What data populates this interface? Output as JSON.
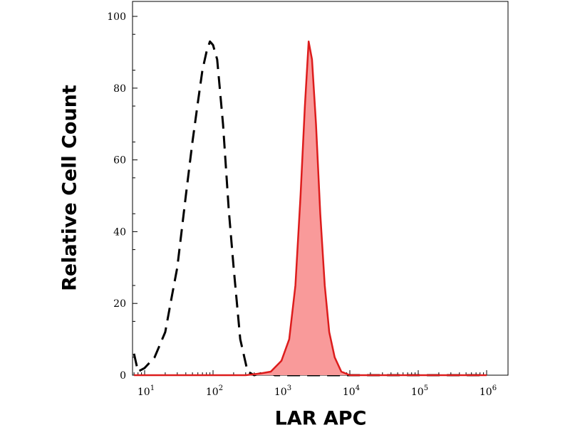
{
  "chart_data": {
    "type": "area",
    "xlabel": "LAR APC",
    "ylabel": "Relative Cell Count",
    "x_scale": "log",
    "xlim": [
      7,
      1200000
    ],
    "ylim": [
      0,
      105
    ],
    "x_ticks": [
      {
        "base": "10",
        "exp": "1",
        "value": 10
      },
      {
        "base": "10",
        "exp": "2",
        "value": 100
      },
      {
        "base": "10",
        "exp": "3",
        "value": 1000
      },
      {
        "base": "10",
        "exp": "4",
        "value": 10000
      },
      {
        "base": "10",
        "exp": "5",
        "value": 100000
      },
      {
        "base": "10",
        "exp": "6",
        "value": 1000000
      }
    ],
    "y_ticks": [
      "0",
      "20",
      "40",
      "60",
      "80",
      "100"
    ],
    "grid": false,
    "series": [
      {
        "style": "dashed",
        "color": "#000000",
        "x": [
          7,
          8,
          10,
          14,
          20,
          25,
          30,
          40,
          50,
          60,
          70,
          80,
          90,
          100,
          115,
          140,
          170,
          200,
          250,
          320,
          400,
          600,
          800,
          1200,
          2000,
          5000,
          10000,
          1000000
        ],
        "y": [
          6,
          1,
          2,
          5,
          12,
          22,
          30,
          50,
          65,
          76,
          85,
          90,
          93,
          92,
          88,
          70,
          46,
          30,
          10,
          1,
          0,
          1,
          0,
          0,
          0,
          0,
          0,
          0
        ]
      },
      {
        "style": "filled",
        "color": "#dd1c1c",
        "fill": "#f99a9a",
        "x": [
          7,
          100,
          300,
          500,
          700,
          1000,
          1300,
          1600,
          1900,
          2200,
          2500,
          2800,
          3200,
          3700,
          4300,
          5000,
          6000,
          7500,
          10000,
          30000,
          1000000
        ],
        "y": [
          0,
          0,
          0,
          0.5,
          1,
          4,
          10,
          25,
          50,
          75,
          93,
          88,
          70,
          45,
          25,
          12,
          5,
          1,
          0,
          0,
          0
        ]
      }
    ]
  }
}
